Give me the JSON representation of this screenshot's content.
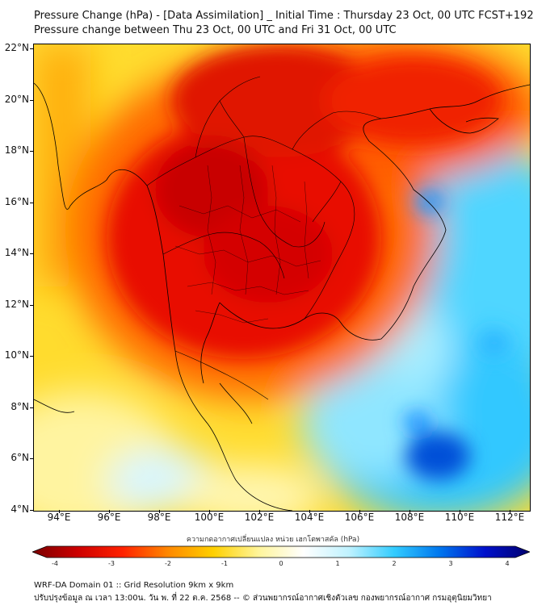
{
  "title_line1": "Pressure Change (hPa) - [Data Assimilation] _ Initial Time : Thursday 23 Oct, 00 UTC FCST+192",
  "title_line2": "Pressure change between Thu 23 Oct, 00 UTC and Fri 31 Oct, 00 UTC",
  "lat_labels": [
    "22°N",
    "20°N",
    "18°N",
    "16°N",
    "14°N",
    "12°N",
    "10°N",
    "8°N",
    "6°N",
    "4°N"
  ],
  "lon_labels": [
    "94°E",
    "96°E",
    "98°E",
    "100°E",
    "102°E",
    "104°E",
    "106°E",
    "108°E",
    "110°E",
    "112°E"
  ],
  "colorbar": {
    "label": "ความกดอากาศเปลี่ยนแปลง หน่วย เฮกโตพาสคัล (hPa)",
    "ticks": [
      "-4",
      "-3",
      "-2",
      "-1",
      "0",
      "1",
      "2",
      "3",
      "4"
    ],
    "colors": [
      "#7a0000",
      "#cc0000",
      "#ff2200",
      "#ff8800",
      "#ffd000",
      "#fff59a",
      "#ffffff",
      "#bff2ff",
      "#33ccff",
      "#0077ee",
      "#0011cc",
      "#00006e"
    ]
  },
  "footer_line1": "WRF-DA Domain 01 :: Grid Resolution 9km x 9km",
  "footer_line2": "ปรับปรุงข้อมูล ณ เวลา 13:00น. วัน พ. ที่ 22 ต.ค. 2568 -- © ส่วนพยากรณ์อากาศเชิงตัวเลข กองพยากรณ์อากาศ กรมอุตุนิยมวิทยา"
}
